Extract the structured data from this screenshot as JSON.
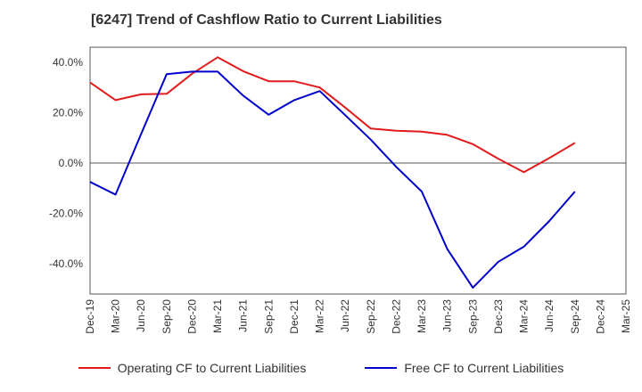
{
  "chart_data": {
    "type": "line",
    "title": "[6247]  Trend of Cashflow Ratio to Current Liabilities",
    "xlabel": "",
    "ylabel": "",
    "categories": [
      "Dec-19",
      "Mar-20",
      "Jun-20",
      "Sep-20",
      "Dec-20",
      "Mar-21",
      "Jun-21",
      "Sep-21",
      "Dec-21",
      "Mar-22",
      "Jun-22",
      "Sep-22",
      "Dec-22",
      "Mar-23",
      "Jun-23",
      "Sep-23",
      "Dec-23",
      "Mar-24",
      "Jun-24",
      "Sep-24",
      "Dec-24",
      "Mar-25"
    ],
    "y_ticks": [
      "40.0%",
      "20.0%",
      "0.0%",
      "-20.0%",
      "-40.0%"
    ],
    "y_tick_values": [
      40,
      20,
      0,
      -20,
      -40
    ],
    "ylim": [
      -52,
      46
    ],
    "grid": true,
    "legend_position": "bottom",
    "series": [
      {
        "name": "Operating CF to Current Liabilities",
        "color": "#e31a1c",
        "values": [
          32.0,
          25.0,
          27.3,
          27.5,
          35.5,
          42.0,
          36.5,
          32.5,
          32.5,
          30.0,
          22.0,
          13.7,
          12.8,
          12.5,
          11.2,
          7.5,
          1.7,
          -3.6,
          2.0,
          8.0,
          null,
          null
        ]
      },
      {
        "name": "Free CF to Current Liabilities",
        "color": "#0000cc",
        "values": [
          -7.5,
          -12.5,
          11.5,
          35.3,
          36.3,
          36.3,
          26.8,
          19.2,
          25.0,
          28.6,
          19.0,
          9.3,
          -1.5,
          -11.3,
          -34.2,
          -49.5,
          -39.2,
          -33.2,
          -23.0,
          -11.3,
          null,
          null
        ]
      }
    ]
  }
}
